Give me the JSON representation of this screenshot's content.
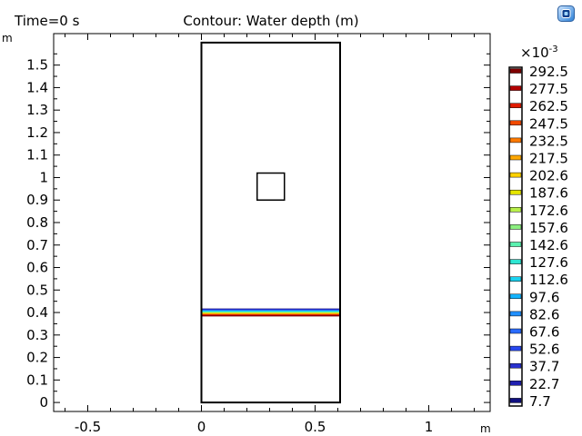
{
  "header": {
    "time_label": "Time=0 s",
    "plot_title": "Contour: Water depth (m)",
    "y_unit": "m",
    "x_unit": "m",
    "logo_icon": "app-logo-icon"
  },
  "axes": {
    "x_ticks": [
      "-0.5",
      "0",
      "0.5",
      "1"
    ],
    "y_ticks": [
      "0",
      "0.1",
      "0.2",
      "0.3",
      "0.4",
      "0.5",
      "0.6",
      "0.7",
      "0.8",
      "0.9",
      "1",
      "1.1",
      "1.2",
      "1.3",
      "1.4",
      "1.5"
    ]
  },
  "legend": {
    "multiplier_base": "×10",
    "multiplier_exp": "-3",
    "levels": [
      "292.5",
      "277.5",
      "262.5",
      "247.5",
      "232.5",
      "217.5",
      "202.6",
      "187.6",
      "172.6",
      "157.6",
      "142.6",
      "127.6",
      "112.6",
      "97.6",
      "82.6",
      "67.6",
      "52.6",
      "37.7",
      "22.7",
      "7.7"
    ],
    "colors": [
      "#7f0000",
      "#b20000",
      "#e01b00",
      "#f24a00",
      "#ff7a00",
      "#ffa800",
      "#ffd200",
      "#e6e600",
      "#b8f04a",
      "#8cf080",
      "#5af2b0",
      "#2ee6d2",
      "#1ad2f0",
      "#14b4ff",
      "#2090ff",
      "#2a6cff",
      "#2848f0",
      "#2a32d0",
      "#2020b0",
      "#101080"
    ]
  },
  "chart_data": {
    "type": "contour",
    "title": "Contour: Water depth (m)",
    "xlabel": "m",
    "ylabel": "m",
    "xlim": [
      -0.65,
      1.27
    ],
    "ylim": [
      -0.04,
      1.64
    ],
    "x_ticks": [
      -0.5,
      0,
      0.5,
      1
    ],
    "y_ticks": [
      0,
      0.1,
      0.2,
      0.3,
      0.4,
      0.5,
      0.6,
      0.7,
      0.8,
      0.9,
      1,
      1.1,
      1.2,
      1.3,
      1.4,
      1.5
    ],
    "domain_outline": {
      "x": [
        0,
        0.61
      ],
      "y": [
        0,
        1.6
      ]
    },
    "obstacle": {
      "x": [
        0.245,
        0.365
      ],
      "y": [
        0.9,
        1.02
      ]
    },
    "contour_band": {
      "y_min": 0.385,
      "y_max": 0.415
    },
    "colorbar_multiplier": "×10^-3",
    "levels": [
      292.5,
      277.5,
      262.5,
      247.5,
      232.5,
      217.5,
      202.6,
      187.6,
      172.6,
      157.6,
      142.6,
      127.6,
      112.6,
      97.6,
      82.6,
      67.6,
      52.6,
      37.7,
      22.7,
      7.7
    ]
  }
}
